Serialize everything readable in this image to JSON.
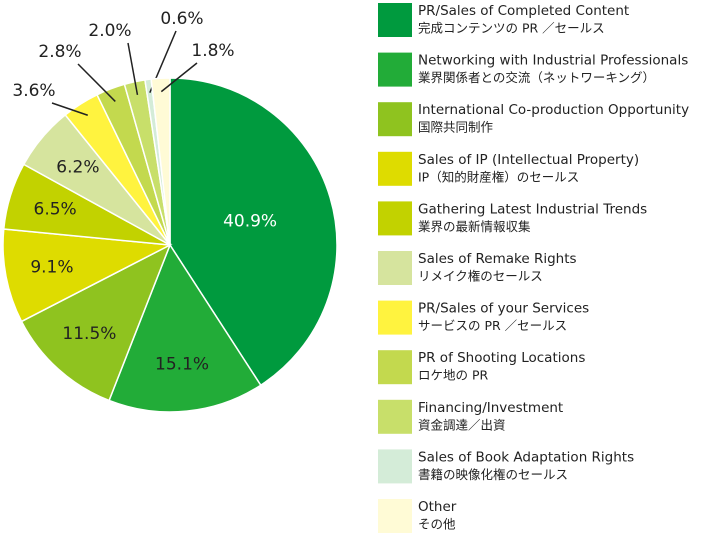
{
  "chart_data": {
    "type": "pie",
    "categories": [
      "PR/Sales of Completed Content",
      "Networking with Industrial Professionals",
      "International Co-production Opportunity",
      "Sales of IP (Intellectual Property)",
      "Gathering Latest Industrial Trends",
      "Sales of Remake Rights",
      "PR/Sales of your Services",
      "PR of Shooting Locations",
      "Financing/Investment",
      "Sales of Book Adaptation Rights",
      "Other"
    ],
    "categories_ja": [
      "完成コンテンツの PR ／セールス",
      "業界関係者との交流（ネットワーキング）",
      "国際共同制作",
      "IP（知的財産権）のセールス",
      "業界の最新情報収集",
      "リメイク権のセールス",
      "サービスの PR ／セールス",
      "ロケ地の PR",
      "資金調達／出資",
      "書籍の映像化権のセールス",
      "その他"
    ],
    "values": [
      40.9,
      15.1,
      11.5,
      9.1,
      6.5,
      6.2,
      3.6,
      2.8,
      2.0,
      0.6,
      1.8
    ],
    "value_labels": [
      "40.9%",
      "15.1%",
      "11.5%",
      "9.1%",
      "6.5%",
      "6.2%",
      "3.6%",
      "2.8%",
      "2.0%",
      "0.6%",
      "1.8%"
    ],
    "colors": [
      "#009a3e",
      "#22ac38",
      "#8fc31f",
      "#dedc00",
      "#c2d200",
      "#d6e49e",
      "#fff33f",
      "#c3d94e",
      "#c8df6a",
      "#d4ecd8",
      "#fffbd6"
    ],
    "legend": "right"
  }
}
